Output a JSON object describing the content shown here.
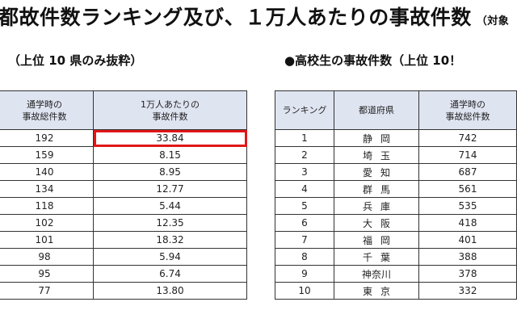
{
  "header": {
    "title": "都故件数ランキング及び、１万人あたりの事故件数",
    "title_note": "（対象"
  },
  "left": {
    "subtitle": "（上位 10 県のみ抜粋）",
    "columns": [
      "通学時の\n事故総件数",
      "1万人あたりの\n事故件数"
    ],
    "rows": [
      [
        "192",
        "33.84"
      ],
      [
        "159",
        "8.15"
      ],
      [
        "140",
        "8.95"
      ],
      [
        "134",
        "12.77"
      ],
      [
        "118",
        "5.44"
      ],
      [
        "102",
        "12.35"
      ],
      [
        "101",
        "18.32"
      ],
      [
        "98",
        "5.94"
      ],
      [
        "95",
        "6.74"
      ],
      [
        "77",
        "13.80"
      ]
    ],
    "highlight_color": "#e01717"
  },
  "right": {
    "subtitle": "●高校生の事故件数（上位 10！",
    "columns": [
      "ランキング",
      "都道府県",
      "通学時の\n事故総件数"
    ],
    "rows": [
      [
        "1",
        "静岡",
        "742"
      ],
      [
        "2",
        "埼玉",
        "714"
      ],
      [
        "3",
        "愛知",
        "687"
      ],
      [
        "4",
        "群馬",
        "561"
      ],
      [
        "5",
        "兵庫",
        "535"
      ],
      [
        "6",
        "大阪",
        "418"
      ],
      [
        "7",
        "福岡",
        "401"
      ],
      [
        "8",
        "千葉",
        "388"
      ],
      [
        "9",
        "神奈川",
        "378"
      ],
      [
        "10",
        "東京",
        "332"
      ]
    ]
  },
  "colors": {
    "header_bg": "#dfe4f1",
    "border": "#333333"
  }
}
